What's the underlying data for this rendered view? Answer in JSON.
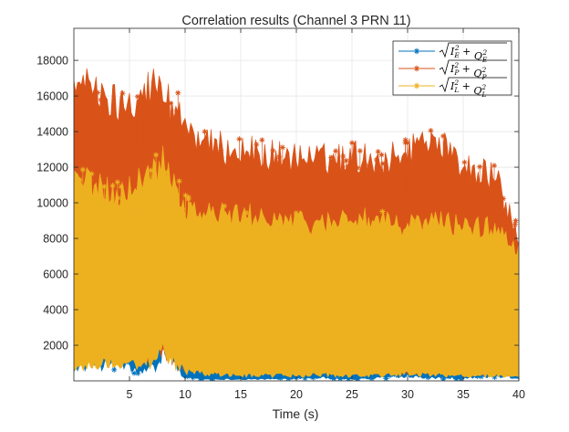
{
  "figure": {
    "title": "Correlation results (Channel 3 PRN 11)",
    "xlabel": "Time (s)"
  },
  "chart_data": {
    "type": "line",
    "title": "Correlation results (Channel 3 PRN 11)",
    "xlabel": "Time (s)",
    "ylabel": "",
    "xlim": [
      0,
      40
    ],
    "ylim": [
      0,
      19800
    ],
    "xticks": [
      5,
      10,
      15,
      20,
      25,
      30,
      35,
      40
    ],
    "yticks": [
      2000,
      4000,
      6000,
      8000,
      10000,
      12000,
      14000,
      16000,
      18000
    ],
    "grid": true,
    "legend_position": "top-right",
    "marker": "asterisk",
    "x": [
      0,
      2,
      4,
      6,
      7.5,
      8,
      10,
      12,
      15,
      18,
      20,
      22,
      25,
      28,
      30,
      32,
      35,
      38,
      40
    ],
    "series": [
      {
        "name": "√(I_E² + Q_E²)",
        "label_base": "I",
        "label_base2": "Q",
        "label_sub": "E",
        "color": "#0072BD",
        "upper_envelope": [
          10200,
          10000,
          9800,
          10000,
          10800,
          11200,
          9800,
          9500,
          9200,
          8800,
          8600,
          8500,
          8400,
          8400,
          8300,
          8200,
          8000,
          7800,
          7600
        ],
        "lower_envelope": [
          800,
          900,
          1000,
          500,
          800,
          1800,
          200,
          100,
          100,
          100,
          150,
          200,
          100,
          200,
          300,
          200,
          150,
          300,
          150
        ]
      },
      {
        "name": "√(I_P² + Q_P²)",
        "label_base": "I",
        "label_base2": "Q",
        "label_sub": "P",
        "color": "#D95319",
        "upper_envelope": [
          18700,
          17200,
          16800,
          17400,
          17900,
          17400,
          15600,
          14200,
          13900,
          13600,
          13500,
          13300,
          13600,
          13300,
          13900,
          14900,
          13000,
          12200,
          8500
        ],
        "lower_envelope": [
          1500,
          1500,
          1600,
          1400,
          1500,
          1800,
          900,
          700,
          700,
          600,
          600,
          600,
          600,
          600,
          600,
          600,
          500,
          500,
          400
        ]
      },
      {
        "name": "√(I_L² + Q_L²)",
        "label_base": "I",
        "label_base2": "Q",
        "label_sub": "L",
        "color": "#EDB120",
        "upper_envelope": [
          12300,
          11800,
          11200,
          12200,
          12800,
          13600,
          10500,
          10100,
          10000,
          9900,
          9600,
          9500,
          9900,
          9500,
          9400,
          9700,
          9400,
          9200,
          8000
        ],
        "lower_envelope": [
          700,
          900,
          1000,
          1000,
          1100,
          1600,
          500,
          400,
          300,
          300,
          300,
          350,
          300,
          300,
          400,
          350,
          300,
          300,
          250
        ]
      }
    ]
  }
}
